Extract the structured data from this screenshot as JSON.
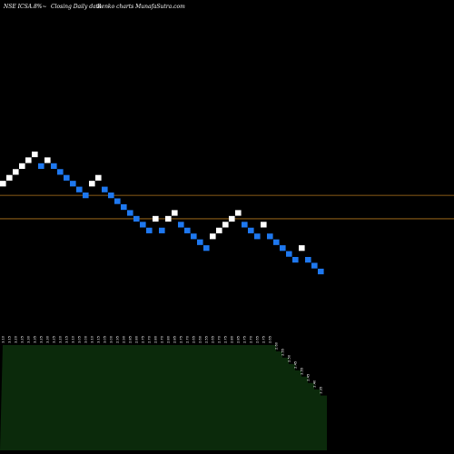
{
  "header": {
    "symbol": "NSE ICSA.8%~",
    "closing": "Closing Daily data",
    "brand": "Renko  charts MunafaSutra.com"
  },
  "colors": {
    "background": "#000000",
    "up_brick": "#ffffff",
    "down_brick": "#1e78f0",
    "reference_line": "#b5781e",
    "volume_fill": "#0b2a0b",
    "text": "#ffffff"
  },
  "chart_data": {
    "type": "renko",
    "brick_size": 0.05,
    "ylim": [
      2.3,
      3.3
    ],
    "reference_lines": [
      3.0,
      2.8
    ],
    "bricks": [
      {
        "dir": "up",
        "price": 3.1,
        "label": "3.10"
      },
      {
        "dir": "up",
        "price": 3.15,
        "label": "3.15"
      },
      {
        "dir": "up",
        "price": 3.2,
        "label": "3.20"
      },
      {
        "dir": "up",
        "price": 3.25,
        "label": "3.25"
      },
      {
        "dir": "up",
        "price": 3.3,
        "label": "3.30"
      },
      {
        "dir": "up",
        "price": 3.35,
        "label": "3.35"
      },
      {
        "dir": "down",
        "price": 3.25,
        "label": "3.25"
      },
      {
        "dir": "up",
        "price": 3.3,
        "label": "3.30"
      },
      {
        "dir": "down",
        "price": 3.25,
        "label": "3.25"
      },
      {
        "dir": "down",
        "price": 3.2,
        "label": "3.20"
      },
      {
        "dir": "down",
        "price": 3.15,
        "label": "3.15"
      },
      {
        "dir": "down",
        "price": 3.1,
        "label": "3.10"
      },
      {
        "dir": "down",
        "price": 3.05,
        "label": "3.05"
      },
      {
        "dir": "down",
        "price": 3.0,
        "label": "3.00"
      },
      {
        "dir": "up",
        "price": 3.1,
        "label": "3.10"
      },
      {
        "dir": "up",
        "price": 3.15,
        "label": "3.15"
      },
      {
        "dir": "down",
        "price": 3.05,
        "label": "3.05"
      },
      {
        "dir": "down",
        "price": 3.0,
        "label": "3.00"
      },
      {
        "dir": "down",
        "price": 2.95,
        "label": "2.95"
      },
      {
        "dir": "down",
        "price": 2.9,
        "label": "2.90"
      },
      {
        "dir": "down",
        "price": 2.85,
        "label": "2.85"
      },
      {
        "dir": "down",
        "price": 2.8,
        "label": "2.80"
      },
      {
        "dir": "down",
        "price": 2.75,
        "label": "2.75"
      },
      {
        "dir": "down",
        "price": 2.7,
        "label": "2.70"
      },
      {
        "dir": "up",
        "price": 2.8,
        "label": "2.80"
      },
      {
        "dir": "down",
        "price": 2.7,
        "label": "2.70"
      },
      {
        "dir": "up",
        "price": 2.8,
        "label": "2.80"
      },
      {
        "dir": "up",
        "price": 2.85,
        "label": "2.85"
      },
      {
        "dir": "down",
        "price": 2.75,
        "label": "2.75"
      },
      {
        "dir": "down",
        "price": 2.7,
        "label": "2.70"
      },
      {
        "dir": "down",
        "price": 2.65,
        "label": "2.65"
      },
      {
        "dir": "down",
        "price": 2.6,
        "label": "2.60"
      },
      {
        "dir": "down",
        "price": 2.55,
        "label": "2.55"
      },
      {
        "dir": "up",
        "price": 2.65,
        "label": "2.65"
      },
      {
        "dir": "up",
        "price": 2.7,
        "label": "2.70"
      },
      {
        "dir": "up",
        "price": 2.75,
        "label": "2.75"
      },
      {
        "dir": "up",
        "price": 2.8,
        "label": "2.80"
      },
      {
        "dir": "up",
        "price": 2.85,
        "label": "2.85"
      },
      {
        "dir": "down",
        "price": 2.75,
        "label": "2.75"
      },
      {
        "dir": "down",
        "price": 2.7,
        "label": "2.70"
      },
      {
        "dir": "down",
        "price": 2.65,
        "label": "2.65"
      },
      {
        "dir": "up",
        "price": 2.75,
        "label": "2.75"
      },
      {
        "dir": "down",
        "price": 2.65,
        "label": "2.65"
      },
      {
        "dir": "down",
        "price": 2.6,
        "label": "2.60"
      },
      {
        "dir": "down",
        "price": 2.55,
        "label": "2.55"
      },
      {
        "dir": "down",
        "price": 2.5,
        "label": "2.50"
      },
      {
        "dir": "down",
        "price": 2.45,
        "label": "2.45"
      },
      {
        "dir": "up",
        "price": 2.55,
        "label": "2.55"
      },
      {
        "dir": "down",
        "price": 2.45,
        "label": "2.45"
      },
      {
        "dir": "down",
        "price": 2.4,
        "label": "2.40"
      },
      {
        "dir": "down",
        "price": 2.35,
        "label": "2.35"
      }
    ],
    "volume": [
      0.5,
      0.5,
      0.5,
      0.5,
      0.5,
      0.5,
      0.5,
      0.5,
      0.5,
      0.5,
      0.5,
      0.5,
      0.5,
      0.5,
      0.5,
      0.5,
      0.5,
      0.5,
      0.5,
      0.5,
      0.5,
      0.5,
      0.5,
      0.5,
      0.5,
      0.5,
      0.5,
      0.5,
      0.5,
      0.5,
      0.5,
      0.5,
      0.5,
      0.5,
      0.5,
      0.5,
      0.5,
      0.5,
      0.5,
      0.5,
      0.5,
      0.5,
      0.5,
      0.47,
      0.44,
      0.41,
      0.38,
      0.35,
      0.32,
      0.29,
      0.26
    ]
  }
}
